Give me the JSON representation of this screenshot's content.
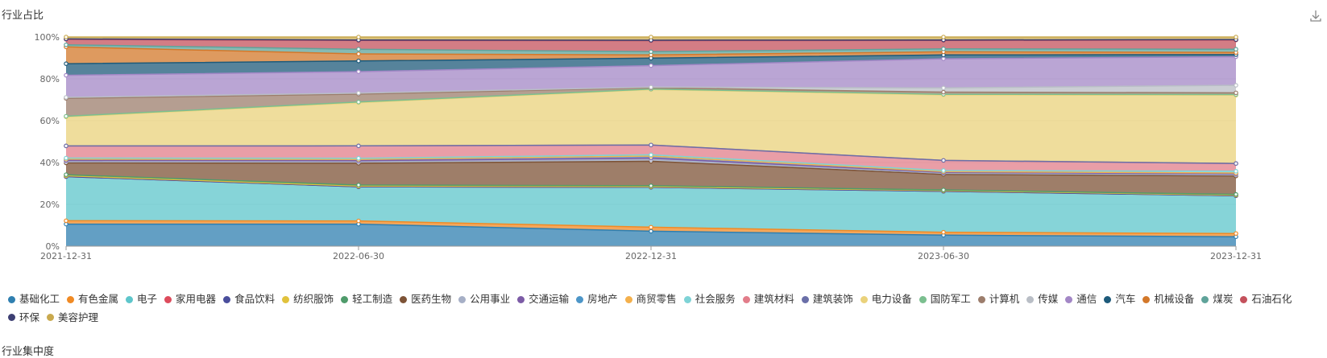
{
  "chart_data": {
    "type": "area",
    "stacked": true,
    "percent": true,
    "title": "行业占比",
    "x": [
      "2021-12-31",
      "2022-06-30",
      "2022-12-31",
      "2023-06-30",
      "2023-12-31"
    ],
    "y_ticks": [
      "0%",
      "20%",
      "40%",
      "60%",
      "80%",
      "100%"
    ],
    "ylim": [
      0,
      100
    ],
    "grid": true,
    "legend_position": "bottom",
    "series": [
      {
        "name": "基础化工",
        "color": "#2f7fb0",
        "values": [
          10.5,
          10.3,
          7.0,
          5.2,
          4.4
        ]
      },
      {
        "name": "有色金属",
        "color": "#f08a24",
        "values": [
          1.6,
          1.5,
          1.9,
          1.4,
          1.5
        ]
      },
      {
        "name": "电子",
        "color": "#5ec6cb",
        "values": [
          21.0,
          16.0,
          18.7,
          19.4,
          17.6
        ]
      },
      {
        "name": "家用电器",
        "color": "#dd4b5c",
        "values": [
          0,
          0,
          0,
          0,
          0
        ]
      },
      {
        "name": "食品饮料",
        "color": "#4a4e9c",
        "values": [
          0,
          0,
          0,
          0,
          0
        ]
      },
      {
        "name": "纺织服饰",
        "color": "#e1c23c",
        "values": [
          0.4,
          0.3,
          0.3,
          0.3,
          0.3
        ]
      },
      {
        "name": "轻工制造",
        "color": "#4f9b6b",
        "values": [
          0.5,
          0.5,
          0.4,
          0.3,
          0.3
        ]
      },
      {
        "name": "医药生物",
        "color": "#7d5337",
        "values": [
          5.6,
          10.2,
          11.5,
          7.4,
          8.6
        ]
      },
      {
        "name": "公用事业",
        "color": "#a6afc6",
        "values": [
          0.6,
          0.6,
          0.8,
          0.5,
          0.5
        ]
      },
      {
        "name": "交通运输",
        "color": "#7c5ba6",
        "values": [
          0.6,
          0.6,
          0.7,
          0.4,
          0.5
        ]
      },
      {
        "name": "房地产",
        "color": "#4d96c8",
        "values": [
          0.6,
          0.6,
          0.9,
          0.4,
          0.4
        ]
      },
      {
        "name": "商贸零售",
        "color": "#f4b04c",
        "values": [
          0,
          0,
          0,
          0,
          0
        ]
      },
      {
        "name": "社会服务",
        "color": "#7ed3d6",
        "values": [
          0.5,
          0.5,
          0.6,
          0.5,
          0.8
        ]
      },
      {
        "name": "建筑材料",
        "color": "#e27d8a",
        "values": [
          5.8,
          5.8,
          4.6,
          4.8,
          3.6
        ]
      },
      {
        "name": "建筑装饰",
        "color": "#6a6fa8",
        "values": [
          0,
          0,
          0,
          0,
          0
        ]
      },
      {
        "name": "电力设备",
        "color": "#ead27b",
        "values": [
          13.8,
          20.2,
          26.0,
          31.0,
          31.8
        ]
      },
      {
        "name": "国防军工",
        "color": "#7bbf8f",
        "values": [
          0.3,
          0.3,
          0.2,
          0.3,
          0.3
        ]
      },
      {
        "name": "计算机",
        "color": "#9c7d6c",
        "values": [
          8.5,
          3.7,
          0.6,
          1.0,
          0.8
        ]
      },
      {
        "name": "传媒",
        "color": "#b9bec6",
        "values": [
          0.5,
          0.5,
          0.3,
          2.0,
          3.5
        ]
      },
      {
        "name": "通信",
        "color": "#a387c6",
        "values": [
          10.5,
          10.0,
          10.1,
          13.8,
          13.3
        ]
      },
      {
        "name": "汽车",
        "color": "#1d5a7a",
        "values": [
          5.5,
          5.0,
          3.5,
          1.8,
          1.0
        ]
      },
      {
        "name": "机械设备",
        "color": "#d3782a",
        "values": [
          8.0,
          3.3,
          1.5,
          1.5,
          1.0
        ]
      },
      {
        "name": "煤炭",
        "color": "#5fa39a",
        "values": [
          1.0,
          2.2,
          1.5,
          1.4,
          1.5
        ]
      },
      {
        "name": "石油石化",
        "color": "#c4515c",
        "values": [
          2.6,
          4.1,
          5.2,
          4.0,
          4.3
        ]
      },
      {
        "name": "环保",
        "color": "#3d3f73",
        "values": [
          0.2,
          0.2,
          0.2,
          0.2,
          0.2
        ]
      },
      {
        "name": "美容护理",
        "color": "#c9a94e",
        "values": [
          0.9,
          1.4,
          1.5,
          1.4,
          1.2
        ]
      }
    ]
  },
  "icons": {
    "download": "download-icon"
  },
  "cut_text": "行业集中度"
}
